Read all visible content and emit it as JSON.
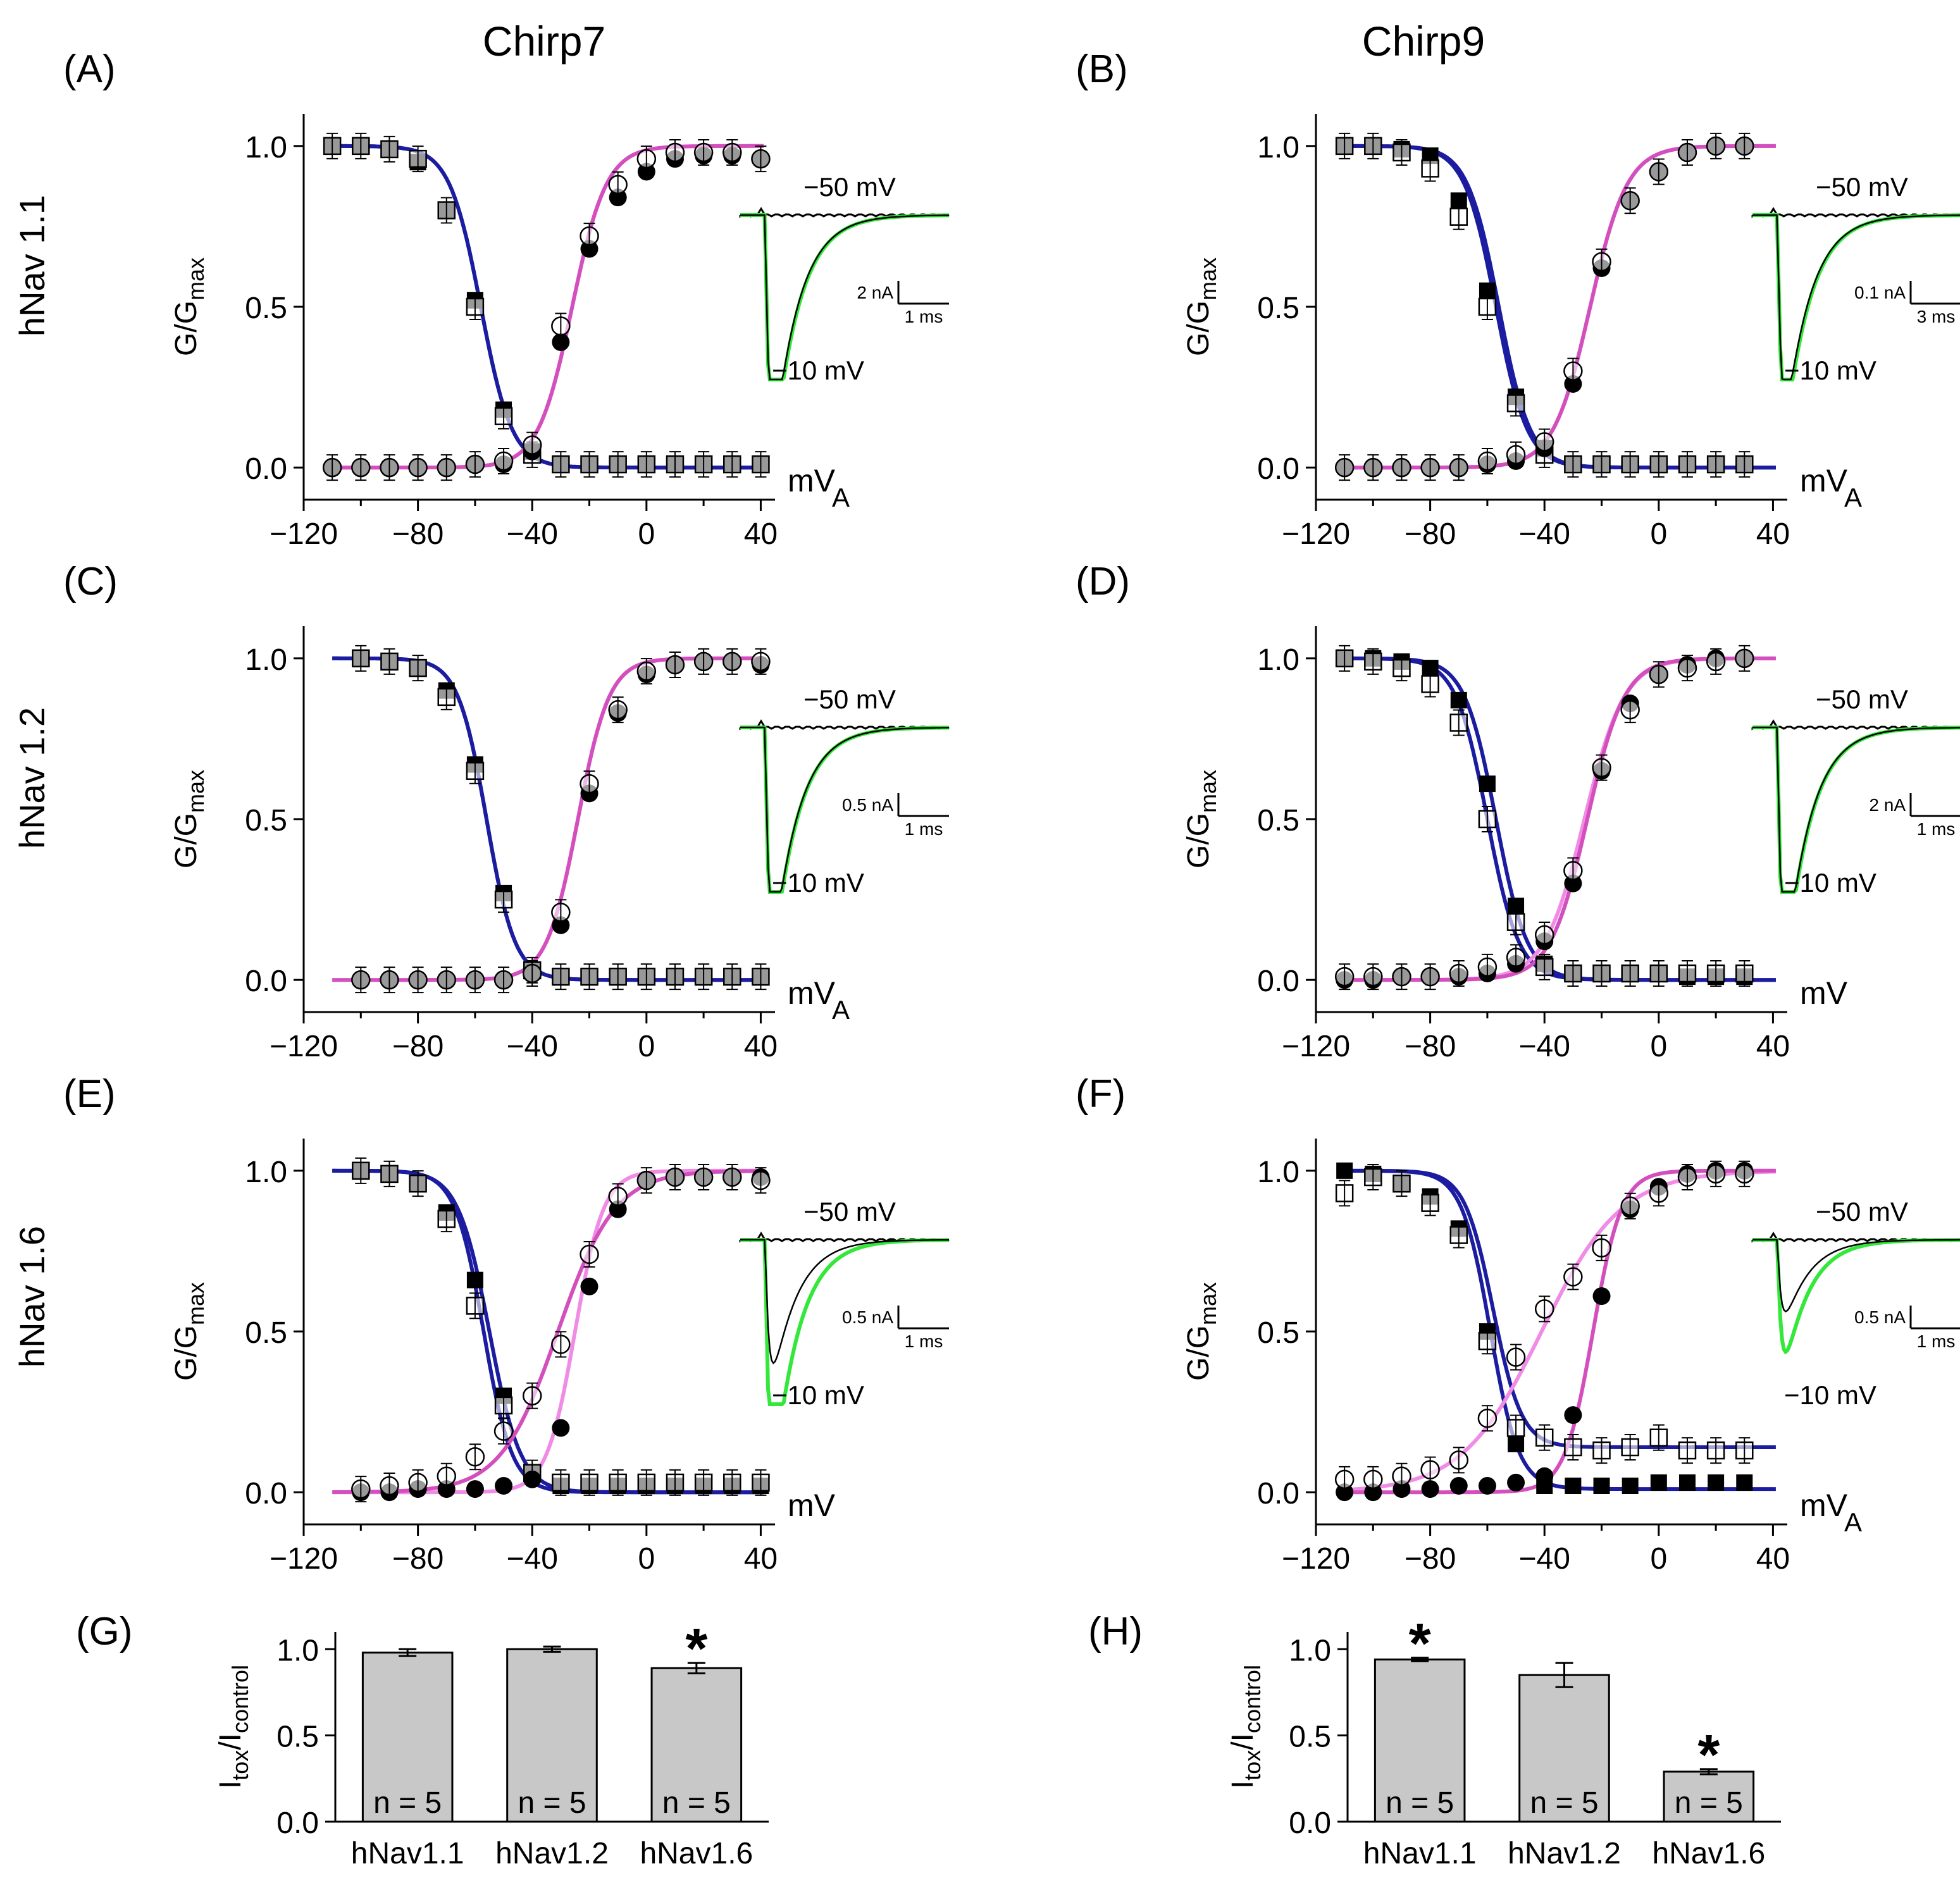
{
  "figure": {
    "column_titles": [
      "Chirp7",
      "Chirp9"
    ],
    "row_labels": [
      "hNav 1.1",
      "hNav 1.2",
      "hNav 1.6"
    ]
  },
  "chart_data": [
    {
      "id": "A",
      "panel_label": "(A)",
      "type": "scatter",
      "title": "Chirp7",
      "row_label": "hNav 1.1",
      "ylabel_main": "G/G",
      "ylabel_sub": "max",
      "xlabel": "mV",
      "stray_label": "A",
      "xlim": [
        -120,
        45
      ],
      "ylim": [
        -0.1,
        1.1
      ],
      "x_ticks": [
        -120,
        -80,
        -40,
        0,
        40
      ],
      "x_tick_labels": [
        "-120",
        "-80",
        "-40",
        "0",
        "40"
      ],
      "y_ticks": [
        0,
        0.5,
        1
      ],
      "y_tick_labels": [
        "0.0",
        "0.5",
        "1.0"
      ],
      "inactivation_x": [
        -110,
        -100,
        -90,
        -80,
        -70,
        -60,
        -50,
        -40,
        -30,
        -20,
        -10,
        0,
        10,
        20,
        30,
        40
      ],
      "inactivation_control": [
        1.0,
        1.0,
        0.99,
        0.96,
        0.8,
        0.5,
        0.16,
        0.04,
        0.01,
        0.01,
        0.01,
        0.01,
        0.01,
        0.01,
        0.01,
        0.01
      ],
      "inactivation_toxin": [
        1.0,
        1.0,
        0.99,
        0.95,
        0.8,
        0.52,
        0.18,
        0.05,
        0.01,
        0.01,
        0.01,
        0.01,
        0.01,
        0.01,
        0.01,
        0.01
      ],
      "activation_x": [
        -110,
        -100,
        -90,
        -80,
        -70,
        -60,
        -50,
        -40,
        -30,
        -20,
        -10,
        0,
        10,
        20,
        30,
        40
      ],
      "activation_control": [
        0.0,
        0.0,
        0.0,
        0.0,
        0.0,
        0.01,
        0.02,
        0.07,
        0.44,
        0.72,
        0.88,
        0.96,
        0.98,
        0.98,
        0.98,
        0.96
      ],
      "activation_toxin": [
        0.0,
        0.0,
        0.0,
        0.0,
        0.0,
        0.01,
        0.01,
        0.05,
        0.39,
        0.68,
        0.84,
        0.92,
        0.96,
        0.97,
        0.97,
        0.96
      ],
      "inact_fit_half": [
        -58,
        -58
      ],
      "inact_fit_slope": [
        5.5,
        5.5
      ],
      "act_fit_half": [
        -26,
        -26
      ],
      "act_fit_slope": [
        6,
        6
      ],
      "inset": {
        "label_top": "−50 mV",
        "label_bottom": "−10 mV",
        "current_scale": "2 nA",
        "time_scale": "1 ms",
        "peak": 0.95,
        "second_peak": 0.92
      }
    },
    {
      "id": "B",
      "panel_label": "(B)",
      "type": "scatter",
      "title": "Chirp9",
      "row_label": "",
      "ylabel_main": "G/G",
      "ylabel_sub": "max",
      "xlabel": "mV",
      "stray_label": "A",
      "xlim": [
        -120,
        45
      ],
      "ylim": [
        -0.1,
        1.1
      ],
      "x_ticks": [
        -120,
        -80,
        -40,
        0,
        40
      ],
      "x_tick_labels": [
        "-120",
        "-80",
        "-40",
        "0",
        "40"
      ],
      "y_ticks": [
        0,
        0.5,
        1
      ],
      "y_tick_labels": [
        "0.0",
        "0.5",
        "1.0"
      ],
      "inactivation_x": [
        -110,
        -100,
        -90,
        -80,
        -70,
        -60,
        -50,
        -40,
        -30,
        -20,
        -10,
        0,
        10,
        20,
        30
      ],
      "inactivation_control": [
        1.0,
        1.0,
        0.98,
        0.93,
        0.78,
        0.5,
        0.2,
        0.04,
        0.01,
        0.01,
        0.01,
        0.01,
        0.01,
        0.01,
        0.01
      ],
      "inactivation_toxin": [
        1.0,
        1.0,
        0.99,
        0.97,
        0.83,
        0.55,
        0.22,
        0.06,
        0.01,
        0.01,
        0.01,
        0.01,
        0.01,
        0.01,
        0.01
      ],
      "activation_x": [
        -110,
        -100,
        -90,
        -80,
        -70,
        -60,
        -50,
        -40,
        -30,
        -20,
        -10,
        0,
        10,
        20,
        30
      ],
      "activation_control": [
        0.0,
        0.0,
        0.0,
        0.0,
        0.0,
        0.02,
        0.04,
        0.08,
        0.3,
        0.64,
        0.83,
        0.92,
        0.98,
        1.0,
        1.0
      ],
      "activation_toxin": [
        0.0,
        0.0,
        0.0,
        0.0,
        0.0,
        0.01,
        0.02,
        0.06,
        0.26,
        0.62,
        0.83,
        0.92,
        0.98,
        1.0,
        1.0
      ],
      "inact_fit_half": [
        -57,
        -56
      ],
      "inact_fit_slope": [
        5.5,
        5.5
      ],
      "act_fit_half": [
        -24,
        -24
      ],
      "act_fit_slope": [
        6.5,
        6.5
      ],
      "inset": {
        "label_top": "−50 mV",
        "label_bottom": "−10 mV",
        "current_scale": "0.1 nA",
        "time_scale": "3 ms",
        "peak": 0.85,
        "second_peak": 0.82
      }
    },
    {
      "id": "C",
      "panel_label": "(C)",
      "type": "scatter",
      "title": "",
      "row_label": "hNav 1.2",
      "ylabel_main": "G/G",
      "ylabel_sub": "max",
      "xlabel": "mV",
      "stray_label": "A",
      "xlim": [
        -120,
        45
      ],
      "ylim": [
        -0.1,
        1.1
      ],
      "x_ticks": [
        -120,
        -80,
        -40,
        0,
        40
      ],
      "x_tick_labels": [
        "-120",
        "-80",
        "-40",
        "0",
        "40"
      ],
      "y_ticks": [
        0,
        0.5,
        1
      ],
      "y_tick_labels": [
        "0.0",
        "0.5",
        "1.0"
      ],
      "inactivation_x": [
        -100,
        -90,
        -80,
        -70,
        -60,
        -50,
        -40,
        -30,
        -20,
        -10,
        0,
        10,
        20,
        30,
        40
      ],
      "inactivation_control": [
        1.0,
        0.99,
        0.97,
        0.88,
        0.65,
        0.25,
        0.03,
        0.01,
        0.01,
        0.01,
        0.01,
        0.01,
        0.01,
        0.01,
        0.01
      ],
      "inactivation_toxin": [
        1.0,
        0.99,
        0.97,
        0.9,
        0.67,
        0.27,
        0.03,
        0.01,
        0.01,
        0.01,
        0.01,
        0.01,
        0.01,
        0.01,
        0.01
      ],
      "activation_x": [
        -100,
        -90,
        -80,
        -70,
        -60,
        -50,
        -40,
        -30,
        -20,
        -10,
        0,
        10,
        20,
        30,
        40
      ],
      "activation_control": [
        0.0,
        0.0,
        0.0,
        0.0,
        0.0,
        0.0,
        0.02,
        0.21,
        0.61,
        0.84,
        0.96,
        0.98,
        0.99,
        0.99,
        0.99
      ],
      "activation_toxin": [
        0.0,
        0.0,
        0.0,
        0.0,
        0.0,
        0.0,
        0.02,
        0.17,
        0.58,
        0.83,
        0.95,
        0.98,
        0.99,
        0.99,
        0.98
      ],
      "inact_fit_half": [
        -56,
        -56
      ],
      "inact_fit_slope": [
        5,
        5
      ],
      "act_fit_half": [
        -24,
        -24
      ],
      "act_fit_slope": [
        5.5,
        5.5
      ],
      "inset": {
        "label_top": "−50 mV",
        "label_bottom": "−10 mV",
        "current_scale": "0.5 nA",
        "time_scale": "1 ms",
        "peak": 0.9,
        "second_peak": 0.88
      }
    },
    {
      "id": "D",
      "panel_label": "(D)",
      "type": "scatter",
      "title": "",
      "row_label": "",
      "ylabel_main": "G/G",
      "ylabel_sub": "max",
      "xlabel": "mV",
      "stray_label": "",
      "xlim": [
        -120,
        45
      ],
      "ylim": [
        -0.1,
        1.1
      ],
      "x_ticks": [
        -120,
        -80,
        -40,
        0,
        40
      ],
      "x_tick_labels": [
        "-120",
        "-80",
        "-40",
        "0",
        "40"
      ],
      "y_ticks": [
        0,
        0.5,
        1
      ],
      "y_tick_labels": [
        "0.0",
        "0.5",
        "1.0"
      ],
      "inactivation_x": [
        -110,
        -100,
        -90,
        -80,
        -70,
        -60,
        -50,
        -40,
        -30,
        -20,
        -10,
        0,
        10,
        20,
        30
      ],
      "inactivation_control": [
        1.0,
        0.99,
        0.97,
        0.92,
        0.8,
        0.5,
        0.18,
        0.04,
        0.02,
        0.02,
        0.02,
        0.02,
        0.02,
        0.02,
        0.02
      ],
      "inactivation_toxin": [
        1.0,
        1.0,
        0.99,
        0.97,
        0.87,
        0.61,
        0.23,
        0.05,
        0.02,
        0.02,
        0.02,
        0.02,
        0.01,
        0.01,
        0.01
      ],
      "activation_x": [
        -110,
        -100,
        -90,
        -80,
        -70,
        -60,
        -50,
        -40,
        -30,
        -20,
        -10,
        0,
        10,
        20,
        30
      ],
      "activation_control": [
        0.01,
        0.01,
        0.01,
        0.01,
        0.02,
        0.04,
        0.07,
        0.14,
        0.34,
        0.66,
        0.84,
        0.95,
        0.97,
        0.99,
        1.0
      ],
      "activation_toxin": [
        0.0,
        0.0,
        0.01,
        0.01,
        0.01,
        0.02,
        0.05,
        0.12,
        0.3,
        0.65,
        0.86,
        0.95,
        0.98,
        1.0,
        1.0
      ],
      "inact_fit_half": [
        -60,
        -57
      ],
      "inact_fit_slope": [
        5.5,
        5.5
      ],
      "act_fit_half": [
        -26,
        -25
      ],
      "act_fit_slope": [
        7,
        6.5
      ],
      "inset": {
        "label_top": "−50 mV",
        "label_bottom": "−10 mV",
        "current_scale": "2 nA",
        "time_scale": "1 ms",
        "peak": 0.95,
        "second_peak": 0.93
      }
    },
    {
      "id": "E",
      "panel_label": "(E)",
      "type": "scatter",
      "title": "",
      "row_label": "hNav 1.6",
      "ylabel_main": "G/G",
      "ylabel_sub": "max",
      "xlabel": "mV",
      "stray_label": "",
      "xlim": [
        -120,
        45
      ],
      "ylim": [
        -0.1,
        1.1
      ],
      "x_ticks": [
        -120,
        -80,
        -40,
        0,
        40
      ],
      "x_tick_labels": [
        "-120",
        "-80",
        "-40",
        "0",
        "40"
      ],
      "y_ticks": [
        0,
        0.5,
        1
      ],
      "y_tick_labels": [
        "0.0",
        "0.5",
        "1.0"
      ],
      "inactivation_x": [
        -100,
        -90,
        -80,
        -70,
        -60,
        -50,
        -40,
        -30,
        -20,
        -10,
        0,
        10,
        20,
        30,
        40
      ],
      "inactivation_control": [
        1.0,
        0.99,
        0.96,
        0.85,
        0.58,
        0.27,
        0.06,
        0.03,
        0.03,
        0.03,
        0.03,
        0.03,
        0.03,
        0.03,
        0.03
      ],
      "inactivation_toxin": [
        1.0,
        0.99,
        0.96,
        0.87,
        0.66,
        0.3,
        0.06,
        0.02,
        0.02,
        0.02,
        0.02,
        0.02,
        0.02,
        0.02,
        0.02
      ],
      "activation_x": [
        -100,
        -90,
        -80,
        -70,
        -60,
        -50,
        -40,
        -30,
        -20,
        -10,
        0,
        10,
        20,
        30,
        40
      ],
      "activation_control": [
        0.01,
        0.02,
        0.03,
        0.05,
        0.11,
        0.19,
        0.3,
        0.46,
        0.74,
        0.92,
        0.97,
        0.98,
        0.98,
        0.98,
        0.97
      ],
      "activation_toxin": [
        0.0,
        0.0,
        0.01,
        0.01,
        0.01,
        0.02,
        0.04,
        0.2,
        0.64,
        0.88,
        0.97,
        0.98,
        0.98,
        0.98,
        0.98
      ],
      "inact_fit_half": [
        -55,
        -57
      ],
      "inact_fit_slope": [
        5.5,
        5
      ],
      "act_fit_half": [
        -25,
        -31
      ],
      "act_fit_slope": [
        5,
        10
      ],
      "inset": {
        "label_top": "−50 mV",
        "label_bottom": "−10 mV",
        "current_scale": "0.5 nA",
        "time_scale": "1 ms",
        "peak": 0.95,
        "second_peak": 0.55
      }
    },
    {
      "id": "F",
      "panel_label": "(F)",
      "type": "scatter",
      "title": "",
      "row_label": "",
      "ylabel_main": "G/G",
      "ylabel_sub": "max",
      "xlabel": "mV",
      "stray_label": "A",
      "xlim": [
        -120,
        45
      ],
      "ylim": [
        -0.1,
        1.1
      ],
      "x_ticks": [
        -120,
        -80,
        -40,
        0,
        40
      ],
      "x_tick_labels": [
        "-120",
        "-80",
        "-40",
        "0",
        "40"
      ],
      "y_ticks": [
        0,
        0.5,
        1
      ],
      "y_tick_labels": [
        "0.0",
        "0.5",
        "1.0"
      ],
      "inactivation_x": [
        -110,
        -100,
        -90,
        -80,
        -70,
        -60,
        -50,
        -40,
        -30,
        -20,
        -10,
        0,
        10,
        20,
        30
      ],
      "inactivation_control": [
        0.93,
        0.98,
        0.96,
        0.9,
        0.8,
        0.47,
        0.2,
        0.17,
        0.14,
        0.13,
        0.14,
        0.17,
        0.13,
        0.13,
        0.13
      ],
      "inactivation_toxin": [
        1.0,
        0.99,
        0.96,
        0.92,
        0.82,
        0.5,
        0.15,
        0.02,
        0.02,
        0.02,
        0.02,
        0.03,
        0.03,
        0.03,
        0.03
      ],
      "activation_x": [
        -110,
        -100,
        -90,
        -80,
        -70,
        -60,
        -50,
        -40,
        -30,
        -20,
        -10,
        0,
        10,
        20,
        30
      ],
      "activation_control": [
        0.04,
        0.04,
        0.05,
        0.07,
        0.1,
        0.23,
        0.42,
        0.57,
        0.67,
        0.76,
        0.89,
        0.93,
        0.98,
        0.99,
        0.99
      ],
      "activation_toxin": [
        0.0,
        0.0,
        0.01,
        0.01,
        0.02,
        0.02,
        0.03,
        0.05,
        0.24,
        0.61,
        0.88,
        0.95,
        0.99,
        1.0,
        1.0
      ],
      "inact_fit_half": [
        -58,
        -59
      ],
      "inact_fit_slope": [
        5,
        5
      ],
      "inact_fit_floor": [
        0.14,
        0.01
      ],
      "act_fit_half": [
        -41,
        -23
      ],
      "act_fit_slope": [
        14,
        5
      ],
      "inset": {
        "label_top": "−50 mV",
        "label_bottom": "−10 mV",
        "current_scale": "0.5 nA",
        "time_scale": "1 ms",
        "peak": 0.5,
        "second_peak": 0.32
      }
    },
    {
      "id": "G",
      "panel_label": "(G)",
      "type": "bar",
      "ylabel_main": "I",
      "ylabel_sub1": "tox",
      "ylabel_sep": "/I",
      "ylabel_sub2": "control",
      "ylim": [
        0,
        1.1
      ],
      "y_ticks": [
        0,
        0.5,
        1
      ],
      "y_tick_labels": [
        "0.0",
        "0.5",
        "1.0"
      ],
      "categories": [
        "hNav1.1",
        "hNav1.2",
        "hNav1.6"
      ],
      "values": [
        0.98,
        1.0,
        0.89
      ],
      "errors": [
        0.02,
        0.015,
        0.03
      ],
      "n_labels": [
        "n = 5",
        "n = 5",
        "n = 5"
      ],
      "significance": [
        "",
        "",
        "*"
      ],
      "bar_color": "#c8c8c8"
    },
    {
      "id": "H",
      "panel_label": "(H)",
      "type": "bar",
      "ylabel_main": "I",
      "ylabel_sub1": "tox",
      "ylabel_sep": "/I",
      "ylabel_sub2": "control",
      "ylim": [
        0,
        1.1
      ],
      "y_ticks": [
        0,
        0.5,
        1
      ],
      "y_tick_labels": [
        "0.0",
        "0.5",
        "1.0"
      ],
      "categories": [
        "hNav1.1",
        "hNav1.2",
        "hNav1.6"
      ],
      "values": [
        0.94,
        0.85,
        0.29
      ],
      "errors": [
        0.01,
        0.07,
        0.015
      ],
      "n_labels": [
        "n = 5",
        "n = 5",
        "n = 5"
      ],
      "significance": [
        "*",
        "",
        "*"
      ],
      "bar_color": "#c8c8c8"
    }
  ],
  "colors": {
    "inactivation_fit": "#1c1ca0",
    "activation_fit_control": "#f08ce6",
    "activation_fit_toxin": "#d34fbd",
    "trace_control": "#000000",
    "trace_toxin": "#33e83a",
    "bar_fill": "#c8c8c8"
  }
}
